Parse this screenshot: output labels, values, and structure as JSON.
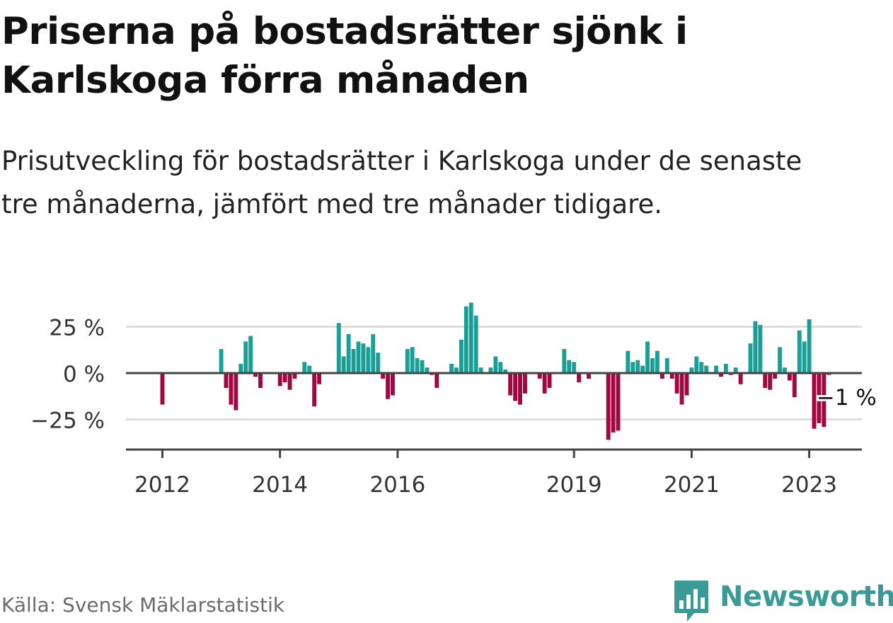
{
  "title": "Priserna på bostadsrätter sjönk i Karlskoga förra månaden",
  "subtitle": "Prisutveckling för bostadsrätter i Karlskoga under de senaste tre månaderna, jämfört med tre månader tidigare.",
  "source": "Källa: Svensk Mäklarstatistik",
  "brand": {
    "name": "Newsworthy",
    "icon": "newsworthy-logo-icon"
  },
  "colors": {
    "positive": "#1a9e95",
    "negative": "#a0083f",
    "axis": "#444444",
    "grid": "#dddddd",
    "brand": "#3a9a96"
  },
  "chart_data": {
    "type": "bar",
    "x_start": "2012-01",
    "x_end": "2023-05",
    "x_ticks": [
      {
        "label": "2012",
        "date": "2012-01"
      },
      {
        "label": "2014",
        "date": "2014-01"
      },
      {
        "label": "2016",
        "date": "2016-01"
      },
      {
        "label": "2019",
        "date": "2019-01"
      },
      {
        "label": "2021",
        "date": "2021-01"
      },
      {
        "label": "2023",
        "date": "2023-01"
      }
    ],
    "y_ticks": [
      {
        "label": "25 %",
        "value": 25
      },
      {
        "label": "0 %",
        "value": 0
      },
      {
        "label": "−25 %",
        "value": -25
      }
    ],
    "ylim": [
      -42,
      38
    ],
    "grid": true,
    "annotation": {
      "label": "−1 %",
      "date": "2023-04",
      "value": -1
    },
    "values": [
      -17,
      0,
      0,
      0,
      0,
      0,
      0,
      0,
      0,
      0,
      0,
      0,
      13,
      -8,
      -17,
      -20,
      5,
      17,
      20,
      -2,
      -8,
      0,
      0,
      0,
      -7,
      -5,
      -9,
      -3,
      0,
      6,
      4,
      -18,
      -6,
      0,
      0,
      0,
      27,
      9,
      21,
      13,
      17,
      16,
      14,
      21,
      11,
      -3,
      -14,
      -12,
      0,
      0,
      13,
      14,
      8,
      7,
      3,
      -1,
      -8,
      0,
      0,
      5,
      3,
      18,
      36,
      38,
      31,
      3,
      0,
      3,
      9,
      6,
      2,
      -12,
      -15,
      -17,
      -11,
      0,
      0,
      -3,
      -11,
      -8,
      0,
      0,
      13,
      7,
      6,
      -5,
      0,
      -3,
      0,
      0,
      0,
      -36,
      -32,
      -31,
      0,
      12,
      6,
      7,
      4,
      17,
      8,
      12,
      -3,
      8,
      -3,
      -11,
      -17,
      -12,
      3,
      9,
      6,
      4,
      0,
      4,
      -2,
      5,
      -1,
      3,
      -6,
      0,
      16,
      28,
      26,
      -8,
      -9,
      -3,
      14,
      3,
      -4,
      -13,
      23,
      17,
      29,
      -30,
      -27,
      -29,
      -1
    ]
  }
}
